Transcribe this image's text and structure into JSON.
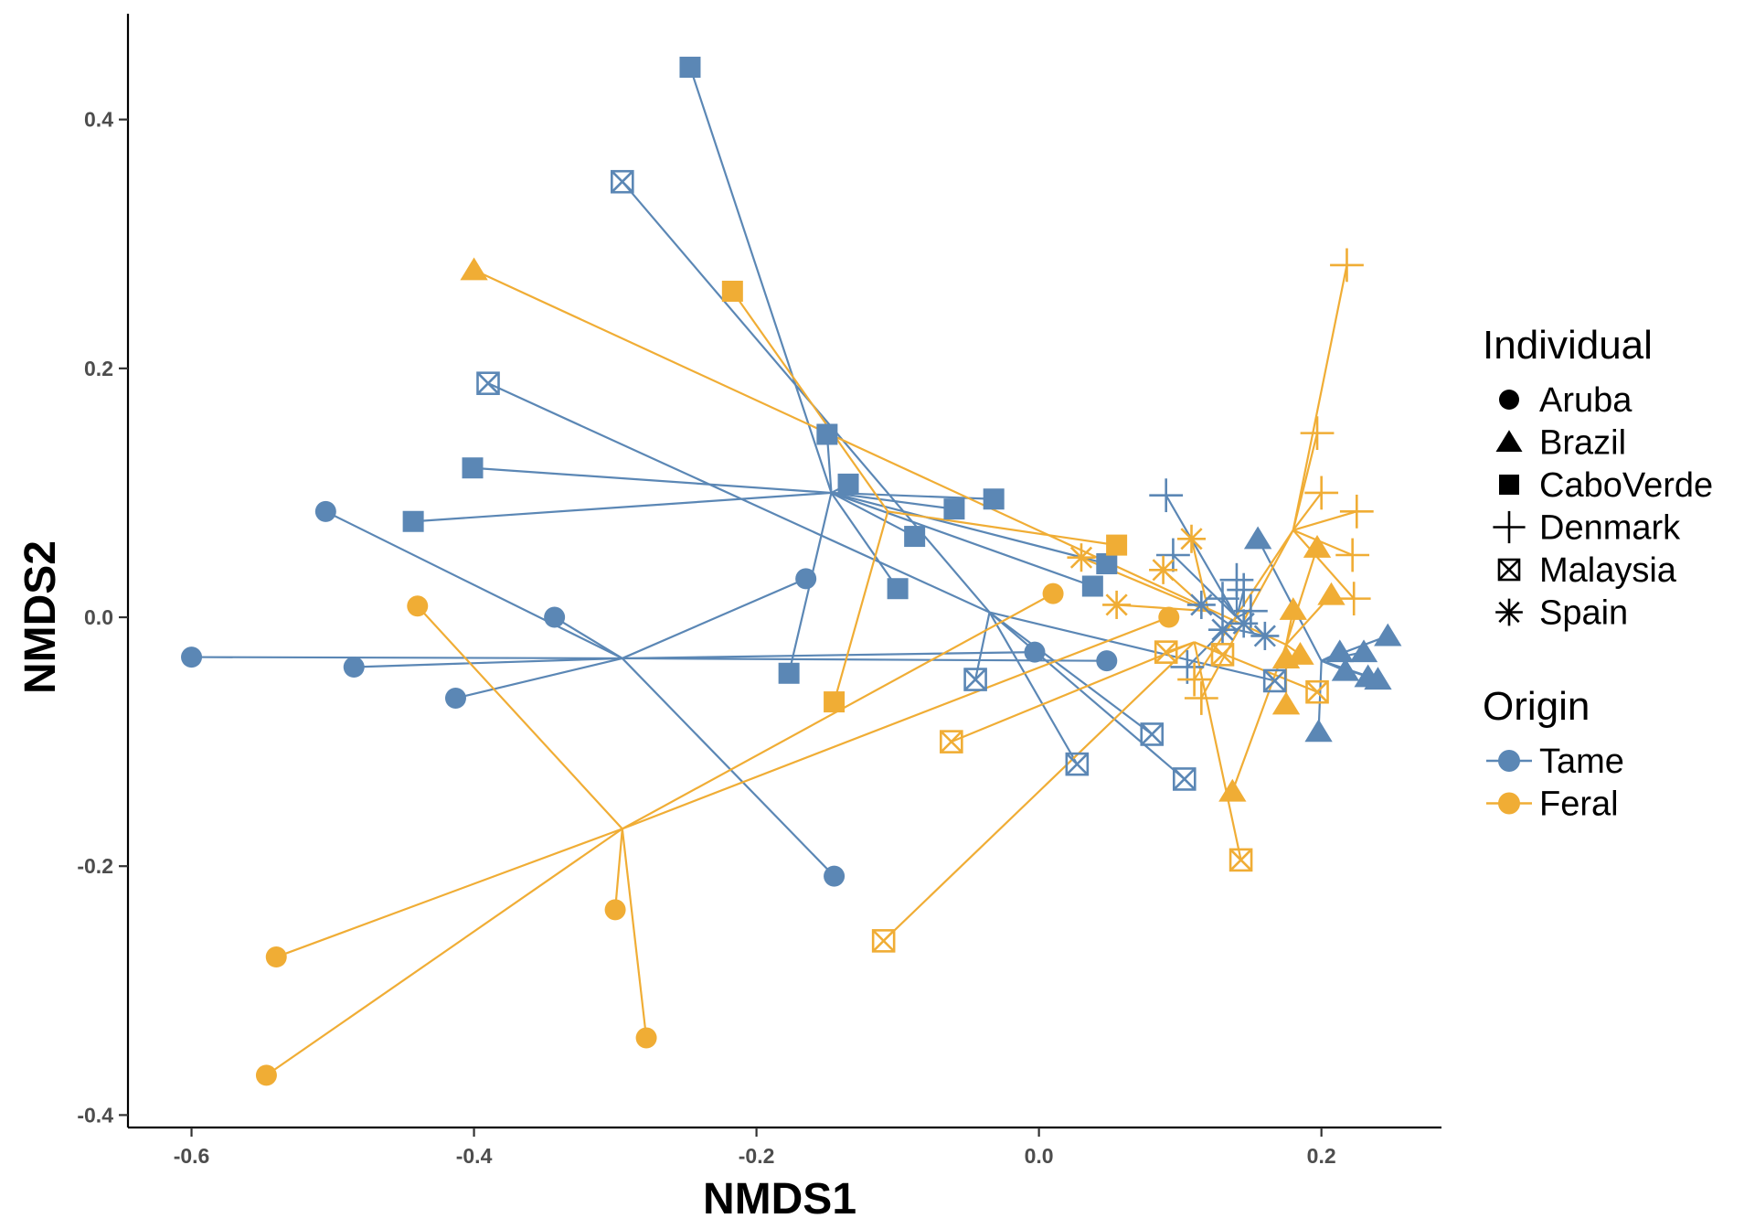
{
  "chart_data": {
    "type": "scatter",
    "xlabel": "NMDS1",
    "ylabel": "NMDS2",
    "xlim": [
      -0.645,
      0.285
    ],
    "ylim": [
      -0.41,
      0.485
    ],
    "x_ticks": [
      "-0.6",
      "-0.4",
      "-0.2",
      "0.0",
      "0.2"
    ],
    "y_ticks": [
      "0.4",
      "0.2",
      "0.0",
      "-0.2",
      "-0.4"
    ],
    "x_tick_values": [
      -0.6,
      -0.4,
      -0.2,
      0.0,
      0.2
    ],
    "y_tick_values": [
      0.4,
      0.2,
      0.0,
      -0.2,
      -0.4
    ],
    "grid": false,
    "legend_position": "right",
    "legends": {
      "individual": {
        "title": "Individual",
        "items": [
          {
            "label": "Aruba",
            "shape": "circle"
          },
          {
            "label": "Brazil",
            "shape": "triangle"
          },
          {
            "label": "CaboVerde",
            "shape": "square"
          },
          {
            "label": "Denmark",
            "shape": "plus"
          },
          {
            "label": "Malaysia",
            "shape": "boxcross"
          },
          {
            "label": "Spain",
            "shape": "asterisk"
          }
        ]
      },
      "origin": {
        "title": "Origin",
        "items": [
          {
            "label": "Tame",
            "color": "#5b87b5"
          },
          {
            "label": "Feral",
            "color": "#f0ad35"
          }
        ]
      }
    },
    "series": [
      {
        "name": "Tame",
        "color": "#5b87b5",
        "centroids": {
          "Aruba": [
            -0.295,
            -0.033
          ],
          "Brazil": [
            0.2,
            -0.035
          ],
          "CaboVerde": [
            -0.147,
            0.1
          ],
          "Denmark": [
            0.14,
            0.0
          ],
          "Malaysia": [
            -0.035,
            0.004
          ],
          "Spain": [
            0.14,
            -0.01
          ]
        },
        "points": [
          {
            "group": "Aruba",
            "x": -0.6,
            "y": -0.032
          },
          {
            "group": "Aruba",
            "x": -0.505,
            "y": 0.085
          },
          {
            "group": "Aruba",
            "x": -0.485,
            "y": -0.04
          },
          {
            "group": "Aruba",
            "x": -0.413,
            "y": -0.065
          },
          {
            "group": "Aruba",
            "x": -0.343,
            "y": 0.0
          },
          {
            "group": "Aruba",
            "x": -0.165,
            "y": 0.031
          },
          {
            "group": "Aruba",
            "x": -0.145,
            "y": -0.208
          },
          {
            "group": "Aruba",
            "x": -0.003,
            "y": -0.028
          },
          {
            "group": "Aruba",
            "x": 0.048,
            "y": -0.035
          },
          {
            "group": "Brazil",
            "x": 0.155,
            "y": 0.063
          },
          {
            "group": "Brazil",
            "x": 0.198,
            "y": -0.092
          },
          {
            "group": "Brazil",
            "x": 0.213,
            "y": -0.028
          },
          {
            "group": "Brazil",
            "x": 0.217,
            "y": -0.043
          },
          {
            "group": "Brazil",
            "x": 0.23,
            "y": -0.028
          },
          {
            "group": "Brazil",
            "x": 0.233,
            "y": -0.048
          },
          {
            "group": "Brazil",
            "x": 0.24,
            "y": -0.05
          },
          {
            "group": "Brazil",
            "x": 0.247,
            "y": -0.015
          },
          {
            "group": "CaboVerde",
            "x": -0.247,
            "y": 0.442
          },
          {
            "group": "CaboVerde",
            "x": -0.443,
            "y": 0.077
          },
          {
            "group": "CaboVerde",
            "x": -0.401,
            "y": 0.12
          },
          {
            "group": "CaboVerde",
            "x": -0.177,
            "y": -0.045
          },
          {
            "group": "CaboVerde",
            "x": -0.15,
            "y": 0.147
          },
          {
            "group": "CaboVerde",
            "x": -0.135,
            "y": 0.107
          },
          {
            "group": "CaboVerde",
            "x": -0.1,
            "y": 0.023
          },
          {
            "group": "CaboVerde",
            "x": -0.088,
            "y": 0.065
          },
          {
            "group": "CaboVerde",
            "x": -0.06,
            "y": 0.087
          },
          {
            "group": "CaboVerde",
            "x": -0.032,
            "y": 0.095
          },
          {
            "group": "CaboVerde",
            "x": 0.038,
            "y": 0.025
          },
          {
            "group": "CaboVerde",
            "x": 0.048,
            "y": 0.043
          },
          {
            "group": "Denmark",
            "x": 0.09,
            "y": 0.098
          },
          {
            "group": "Denmark",
            "x": 0.095,
            "y": 0.05
          },
          {
            "group": "Denmark",
            "x": 0.105,
            "y": -0.04
          },
          {
            "group": "Denmark",
            "x": 0.13,
            "y": 0.015
          },
          {
            "group": "Denmark",
            "x": 0.14,
            "y": 0.03
          },
          {
            "group": "Denmark",
            "x": 0.145,
            "y": 0.022
          },
          {
            "group": "Denmark",
            "x": 0.15,
            "y": 0.005
          },
          {
            "group": "Malaysia",
            "x": -0.295,
            "y": 0.35
          },
          {
            "group": "Malaysia",
            "x": -0.39,
            "y": 0.188
          },
          {
            "group": "Malaysia",
            "x": -0.045,
            "y": -0.05
          },
          {
            "group": "Malaysia",
            "x": 0.027,
            "y": -0.118
          },
          {
            "group": "Malaysia",
            "x": 0.08,
            "y": -0.094
          },
          {
            "group": "Malaysia",
            "x": 0.103,
            "y": -0.13
          },
          {
            "group": "Malaysia",
            "x": 0.167,
            "y": -0.051
          },
          {
            "group": "Spain",
            "x": 0.115,
            "y": 0.01
          },
          {
            "group": "Spain",
            "x": 0.13,
            "y": -0.01
          },
          {
            "group": "Spain",
            "x": 0.145,
            "y": -0.005
          },
          {
            "group": "Spain",
            "x": 0.16,
            "y": -0.015
          }
        ]
      },
      {
        "name": "Feral",
        "color": "#f0ad35",
        "centroids": {
          "Aruba": [
            -0.295,
            -0.17
          ],
          "Brazil": [
            0.175,
            -0.022
          ],
          "CaboVerde": [
            -0.107,
            0.085
          ],
          "Denmark": [
            0.18,
            0.07
          ],
          "Malaysia": [
            0.11,
            -0.02
          ],
          "Spain": [
            0.12,
            0.005
          ]
        },
        "points": [
          {
            "group": "Aruba",
            "x": -0.44,
            "y": 0.009
          },
          {
            "group": "Aruba",
            "x": -0.54,
            "y": -0.273
          },
          {
            "group": "Aruba",
            "x": -0.547,
            "y": -0.368
          },
          {
            "group": "Aruba",
            "x": -0.3,
            "y": -0.235
          },
          {
            "group": "Aruba",
            "x": -0.278,
            "y": -0.338
          },
          {
            "group": "Aruba",
            "x": 0.01,
            "y": 0.019
          },
          {
            "group": "Aruba",
            "x": 0.092,
            "y": 0.0
          },
          {
            "group": "Brazil",
            "x": -0.4,
            "y": 0.279
          },
          {
            "group": "Brazil",
            "x": 0.137,
            "y": -0.14
          },
          {
            "group": "Brazil",
            "x": 0.175,
            "y": -0.07
          },
          {
            "group": "Brazil",
            "x": 0.175,
            "y": -0.033
          },
          {
            "group": "Brazil",
            "x": 0.18,
            "y": 0.006
          },
          {
            "group": "Brazil",
            "x": 0.185,
            "y": -0.03
          },
          {
            "group": "Brazil",
            "x": 0.197,
            "y": 0.056
          },
          {
            "group": "Brazil",
            "x": 0.207,
            "y": 0.018
          },
          {
            "group": "CaboVerde",
            "x": -0.217,
            "y": 0.262
          },
          {
            "group": "CaboVerde",
            "x": -0.145,
            "y": -0.068
          },
          {
            "group": "CaboVerde",
            "x": 0.055,
            "y": 0.058
          },
          {
            "group": "Denmark",
            "x": 0.197,
            "y": 0.148
          },
          {
            "group": "Denmark",
            "x": 0.2,
            "y": 0.1
          },
          {
            "group": "Denmark",
            "x": 0.218,
            "y": 0.283
          },
          {
            "group": "Denmark",
            "x": 0.225,
            "y": 0.085
          },
          {
            "group": "Denmark",
            "x": 0.222,
            "y": 0.05
          },
          {
            "group": "Denmark",
            "x": 0.223,
            "y": 0.015
          },
          {
            "group": "Denmark",
            "x": 0.11,
            "y": -0.05
          },
          {
            "group": "Denmark",
            "x": 0.115,
            "y": -0.065
          },
          {
            "group": "Malaysia",
            "x": -0.062,
            "y": -0.1
          },
          {
            "group": "Malaysia",
            "x": -0.11,
            "y": -0.26
          },
          {
            "group": "Malaysia",
            "x": 0.09,
            "y": -0.028
          },
          {
            "group": "Malaysia",
            "x": 0.13,
            "y": -0.03
          },
          {
            "group": "Malaysia",
            "x": 0.143,
            "y": -0.195
          },
          {
            "group": "Malaysia",
            "x": 0.197,
            "y": -0.06
          },
          {
            "group": "Spain",
            "x": 0.03,
            "y": 0.048
          },
          {
            "group": "Spain",
            "x": 0.055,
            "y": 0.01
          },
          {
            "group": "Spain",
            "x": 0.088,
            "y": 0.038
          },
          {
            "group": "Spain",
            "x": 0.108,
            "y": 0.063
          }
        ]
      }
    ]
  }
}
